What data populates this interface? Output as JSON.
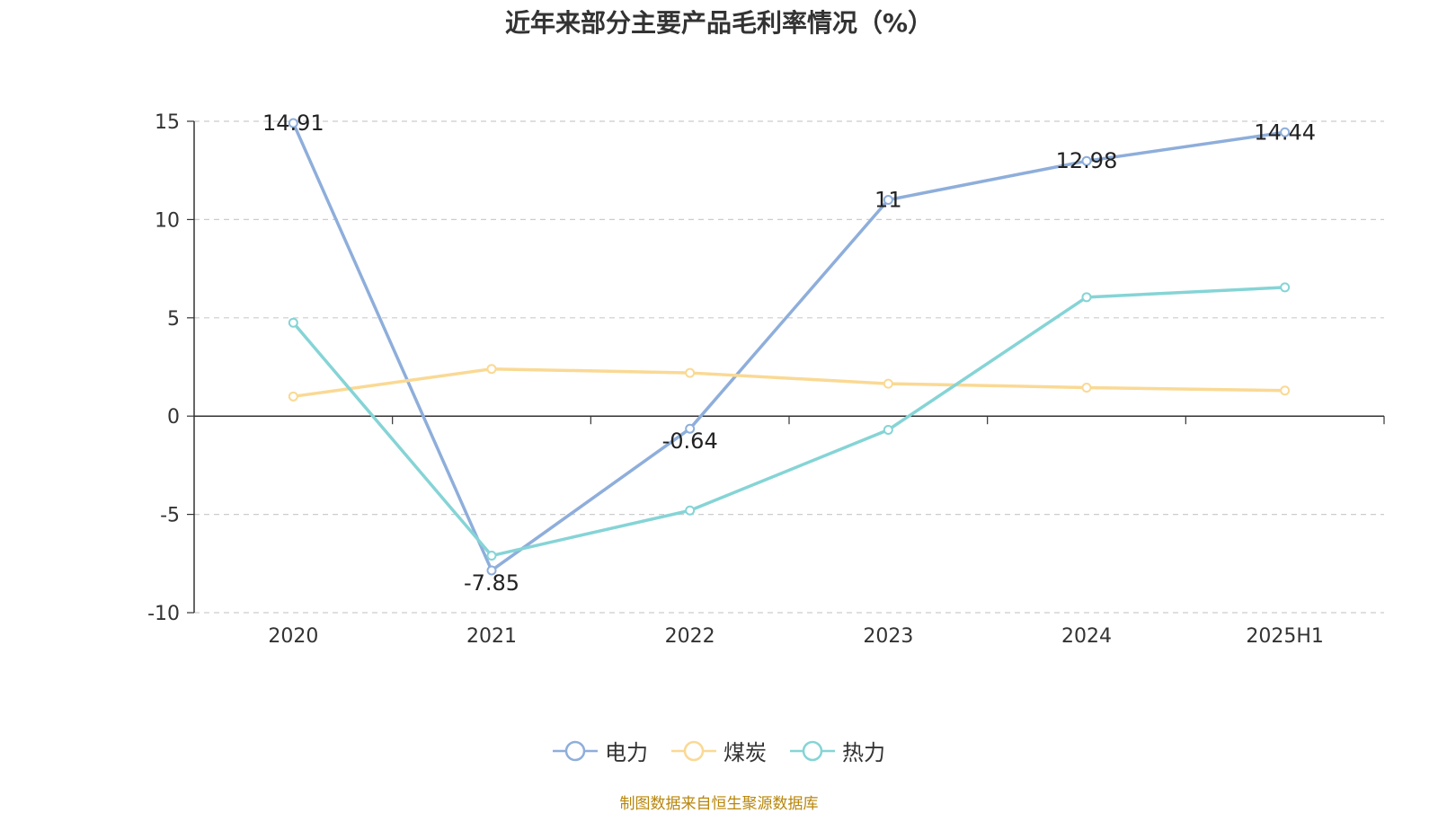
{
  "chart_data": {
    "type": "line",
    "title": "近年来部分主要产品毛利率情况（%）",
    "categories": [
      "2020",
      "2021",
      "2022",
      "2023",
      "2024",
      "2025H1"
    ],
    "ylim": [
      -10,
      15
    ],
    "yticks": [
      15,
      10,
      5,
      0,
      -5,
      -10
    ],
    "grid": true,
    "legend_position": "bottom",
    "series": [
      {
        "name": "电力",
        "color": "#8eaedb",
        "values": [
          14.91,
          -7.85,
          -0.64,
          11,
          12.98,
          14.44
        ],
        "labels": [
          "14.91",
          "-7.85",
          "-0.64",
          "11",
          "12.98",
          "14.44"
        ]
      },
      {
        "name": "煤炭",
        "color": "#fad994",
        "values": [
          1.0,
          2.4,
          2.2,
          1.65,
          1.45,
          1.3
        ]
      },
      {
        "name": "热力",
        "color": "#85d4d6",
        "values": [
          4.75,
          -7.1,
          -4.8,
          -0.7,
          6.05,
          6.55
        ]
      }
    ]
  },
  "source_note": "制图数据来自恒生聚源数据库"
}
